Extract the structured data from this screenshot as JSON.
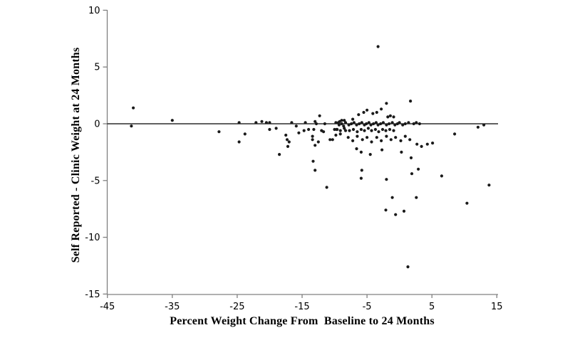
{
  "chart_data": {
    "type": "scatter",
    "title": "",
    "xlabel": "Percent Weight Change From  Baseline to 24 Months",
    "ylabel": "Self Reported - Clinic Weight at 24 Months",
    "xlim": [
      -45,
      15
    ],
    "ylim": [
      -15,
      10
    ],
    "x_ticks": [
      -45,
      -35,
      -25,
      -15,
      -5,
      5,
      15
    ],
    "y_ticks": [
      10,
      5,
      0,
      -5,
      -10,
      -15
    ],
    "grid": false,
    "legend": false,
    "zero_line_y": 0,
    "marker": "filled-circle",
    "colors": {
      "point": "#1a1a1a",
      "axis": "#808080",
      "zero_line": "#000000",
      "background": "#ffffff",
      "text": "#000000"
    },
    "points": [
      [
        -41.0,
        1.4
      ],
      [
        -41.3,
        -0.2
      ],
      [
        -35.0,
        0.3
      ],
      [
        -27.8,
        -0.7
      ],
      [
        -24.7,
        0.1
      ],
      [
        -24.7,
        -1.6
      ],
      [
        -23.8,
        -0.9
      ],
      [
        -22.1,
        0.1
      ],
      [
        -21.2,
        0.2
      ],
      [
        -20.5,
        0.1
      ],
      [
        -20.0,
        0.1
      ],
      [
        -20.0,
        -0.5
      ],
      [
        -19.0,
        -0.4
      ],
      [
        -18.5,
        -2.7
      ],
      [
        -17.5,
        -1.0
      ],
      [
        -17.3,
        -1.4
      ],
      [
        -17.0,
        -1.6
      ],
      [
        -17.2,
        -2.0
      ],
      [
        -16.6,
        0.1
      ],
      [
        -15.9,
        -0.2
      ],
      [
        -15.5,
        -0.8
      ],
      [
        -14.7,
        -0.6
      ],
      [
        -14.5,
        0.1
      ],
      [
        -14.0,
        -0.5
      ],
      [
        -13.4,
        -1.1
      ],
      [
        -13.2,
        -0.5
      ],
      [
        -13.0,
        0.2
      ],
      [
        -12.8,
        0.0
      ],
      [
        -13.4,
        -1.4
      ],
      [
        -13.0,
        -1.9
      ],
      [
        -12.5,
        -1.6
      ],
      [
        -13.3,
        -3.3
      ],
      [
        -13.0,
        -4.1
      ],
      [
        -12.3,
        0.7
      ],
      [
        -12.0,
        -0.6
      ],
      [
        -11.7,
        -0.7
      ],
      [
        -11.5,
        0.0
      ],
      [
        -11.2,
        -5.6
      ],
      [
        -10.7,
        -1.4
      ],
      [
        -10.3,
        -1.4
      ],
      [
        -10.0,
        -0.5
      ],
      [
        -9.8,
        -1.0
      ],
      [
        -9.6,
        -0.5
      ],
      [
        -9.4,
        0.1
      ],
      [
        -9.2,
        0.2
      ],
      [
        -9.1,
        -0.9
      ],
      [
        -8.9,
        0.3
      ],
      [
        -8.6,
        -0.2
      ],
      [
        -8.5,
        0.3
      ],
      [
        -8.3,
        -0.6
      ],
      [
        -9.8,
        0.1
      ],
      [
        -9.3,
        -0.1
      ],
      [
        -8.9,
        0.0
      ],
      [
        -8.3,
        0.1
      ],
      [
        -7.8,
        -0.1
      ],
      [
        -7.4,
        0.0
      ],
      [
        -7.0,
        0.1
      ],
      [
        -6.6,
        -0.1
      ],
      [
        -6.2,
        0.0
      ],
      [
        -5.8,
        0.1
      ],
      [
        -5.4,
        -0.1
      ],
      [
        -5.1,
        0.0
      ],
      [
        -4.7,
        0.1
      ],
      [
        -4.4,
        -0.1
      ],
      [
        -4.0,
        0.0
      ],
      [
        -3.6,
        0.1
      ],
      [
        -3.3,
        -0.1
      ],
      [
        -2.9,
        0.0
      ],
      [
        -2.5,
        0.1
      ],
      [
        -2.0,
        -0.1
      ],
      [
        -1.6,
        0.0
      ],
      [
        -1.1,
        0.1
      ],
      [
        -0.7,
        -0.1
      ],
      [
        -0.3,
        0.0
      ],
      [
        0.0,
        0.1
      ],
      [
        0.5,
        -0.1
      ],
      [
        0.9,
        0.0
      ],
      [
        1.4,
        0.1
      ],
      [
        2.2,
        0.0
      ],
      [
        2.6,
        0.1
      ],
      [
        3.1,
        0.0
      ],
      [
        -9.7,
        -0.5
      ],
      [
        -9.1,
        -0.6
      ],
      [
        -8.5,
        -0.4
      ],
      [
        -7.7,
        -0.6
      ],
      [
        -7.1,
        -0.5
      ],
      [
        -6.5,
        -0.7
      ],
      [
        -5.9,
        -0.5
      ],
      [
        -5.4,
        -0.6
      ],
      [
        -4.8,
        -0.4
      ],
      [
        -4.3,
        -0.6
      ],
      [
        -3.7,
        -0.5
      ],
      [
        -3.2,
        -0.7
      ],
      [
        -2.6,
        -0.5
      ],
      [
        -2.1,
        -0.6
      ],
      [
        -1.5,
        -0.5
      ],
      [
        -0.9,
        -0.6
      ],
      [
        -7.9,
        -1.2
      ],
      [
        -7.2,
        -1.5
      ],
      [
        -6.5,
        -1.1
      ],
      [
        -5.7,
        -1.4
      ],
      [
        -5.0,
        -1.2
      ],
      [
        -4.3,
        -1.6
      ],
      [
        -3.5,
        -1.2
      ],
      [
        -2.8,
        -1.5
      ],
      [
        -2.0,
        -1.1
      ],
      [
        -1.3,
        -1.4
      ],
      [
        -0.6,
        -1.2
      ],
      [
        0.2,
        -1.5
      ],
      [
        0.9,
        -1.1
      ],
      [
        1.6,
        -1.4
      ],
      [
        2.7,
        -1.8
      ],
      [
        3.4,
        -2.0
      ],
      [
        4.3,
        -1.8
      ],
      [
        5.1,
        -1.7
      ],
      [
        -6.6,
        -2.2
      ],
      [
        -5.9,
        -2.5
      ],
      [
        -4.5,
        -2.7
      ],
      [
        -2.7,
        -2.3
      ],
      [
        0.3,
        -2.5
      ],
      [
        1.8,
        -3.0
      ],
      [
        -7.2,
        0.4
      ],
      [
        -6.3,
        0.8
      ],
      [
        -5.5,
        1.0
      ],
      [
        -5.0,
        1.2
      ],
      [
        -4.1,
        0.9
      ],
      [
        -3.5,
        1.0
      ],
      [
        -2.8,
        1.3
      ],
      [
        -2.0,
        1.8
      ],
      [
        -1.8,
        0.6
      ],
      [
        -1.4,
        0.7
      ],
      [
        -0.9,
        0.6
      ],
      [
        1.7,
        2.0
      ],
      [
        -3.3,
        6.8
      ],
      [
        -5.8,
        -4.1
      ],
      [
        -5.9,
        -4.8
      ],
      [
        -2.0,
        -4.9
      ],
      [
        1.9,
        -4.4
      ],
      [
        2.9,
        -4.0
      ],
      [
        6.5,
        -4.6
      ],
      [
        -1.1,
        -6.5
      ],
      [
        2.6,
        -6.5
      ],
      [
        -2.1,
        -7.6
      ],
      [
        -0.6,
        -8.0
      ],
      [
        0.7,
        -7.7
      ],
      [
        10.4,
        -7.0
      ],
      [
        13.8,
        -5.4
      ],
      [
        1.3,
        -12.6
      ],
      [
        8.5,
        -0.9
      ],
      [
        12.1,
        -0.3
      ],
      [
        13.0,
        -0.1
      ]
    ]
  }
}
